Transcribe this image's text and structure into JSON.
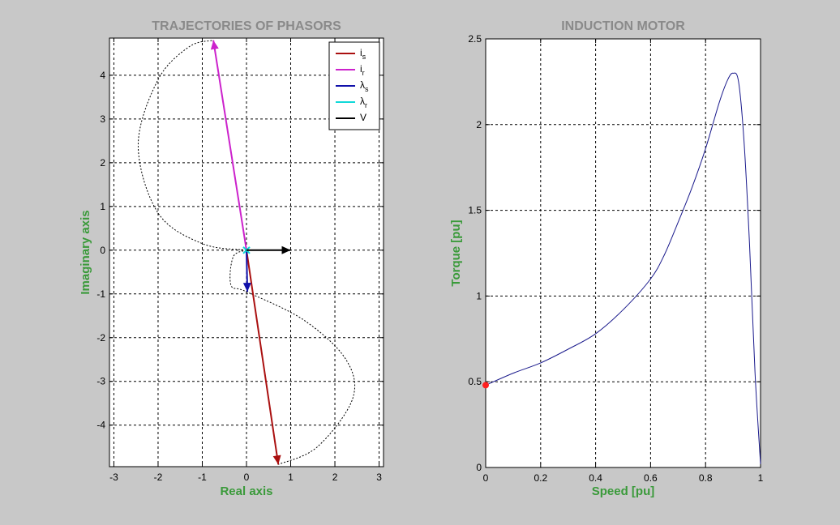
{
  "chart_data": [
    {
      "type": "line",
      "title": "TRAJECTORIES OF PHASORS",
      "xlabel": "Real axis",
      "ylabel": "Imaginary axis",
      "xlim": [
        -3.1,
        3.1
      ],
      "ylim": [
        -4.95,
        4.85
      ],
      "xticks": [
        -3,
        -2,
        -1,
        0,
        1,
        2,
        3
      ],
      "yticks": [
        -4,
        -3,
        -2,
        -1,
        0,
        1,
        2,
        3,
        4
      ],
      "grid": true,
      "legend": {
        "position": "top-right",
        "entries": [
          {
            "key": "is",
            "main": "i",
            "sub": "s",
            "color": "#aa1010"
          },
          {
            "key": "ir",
            "main": "i",
            "sub": "r",
            "color": "#cc22cc"
          },
          {
            "key": "ls",
            "main": "λ",
            "sub": "s",
            "color": "#1010aa"
          },
          {
            "key": "lr",
            "main": "λ",
            "sub": "r",
            "color": "#10d8d8"
          },
          {
            "key": "v",
            "main": "V",
            "sub": "",
            "color": "#000000"
          }
        ]
      },
      "phasors": [
        {
          "key": "ir",
          "x": -0.75,
          "y": 4.8
        },
        {
          "key": "is",
          "x": 0.72,
          "y": -4.9
        },
        {
          "key": "ls",
          "x": 0.02,
          "y": -0.95
        },
        {
          "key": "lr",
          "x": 0.0,
          "y": 0.0
        },
        {
          "key": "v",
          "x": 1.0,
          "y": 0.0
        }
      ],
      "trajectories": [
        {
          "name": "upper",
          "points": [
            [
              0,
              0
            ],
            [
              -1,
              0.15
            ],
            [
              -2,
              0.85
            ],
            [
              -2.45,
              2.4
            ],
            [
              -2,
              3.9
            ],
            [
              -1.3,
              4.65
            ],
            [
              -0.75,
              4.8
            ]
          ]
        },
        {
          "name": "lower",
          "points": [
            [
              0,
              0
            ],
            [
              -0.3,
              -0.15
            ],
            [
              -0.35,
              -0.8
            ],
            [
              0,
              -0.95
            ],
            [
              1.3,
              -1.6
            ],
            [
              2.25,
              -2.5
            ],
            [
              2.4,
              -3.4
            ],
            [
              1.6,
              -4.5
            ],
            [
              0.72,
              -4.9
            ]
          ]
        }
      ]
    },
    {
      "type": "line",
      "title": "INDUCTION MOTOR",
      "xlabel": "Speed [pu]",
      "ylabel": "Torque [pu]",
      "xlim": [
        0,
        1
      ],
      "ylim": [
        0,
        2.5
      ],
      "xticks": [
        0,
        0.2,
        0.4,
        0.6,
        0.8,
        1
      ],
      "yticks": [
        0,
        0.5,
        1,
        1.5,
        2,
        2.5
      ],
      "grid": true,
      "series": [
        {
          "color": "#1a1a8c",
          "x": [
            0,
            0.1,
            0.2,
            0.3,
            0.4,
            0.5,
            0.6,
            0.65,
            0.7,
            0.75,
            0.8,
            0.85,
            0.88,
            0.9,
            0.92,
            0.94,
            0.96,
            0.98,
            1.0
          ],
          "y": [
            0.48,
            0.55,
            0.61,
            0.69,
            0.78,
            0.92,
            1.1,
            1.24,
            1.43,
            1.63,
            1.86,
            2.13,
            2.26,
            2.3,
            2.25,
            1.9,
            1.3,
            0.55,
            0.02
          ]
        }
      ],
      "marker": {
        "x": 0,
        "y": 0.48,
        "color": "#ff2020"
      }
    }
  ]
}
